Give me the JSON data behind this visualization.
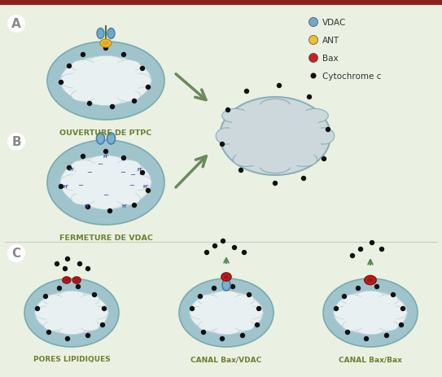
{
  "bg_color": "#eaf0e2",
  "border_color": "#8b2020",
  "mito_outer_fill": "#9fc4cc",
  "mito_outer_stroke": "#7aaab0",
  "cristae_fill": "#e8f0f2",
  "cristae_stroke": "#b8d0d4",
  "cloud_fill": "#ccd8dc",
  "cloud_stroke": "#8ab0b8",
  "vdac_color": "#7ab0d0",
  "ant_color": "#f0c030",
  "bax_color": "#c82020",
  "dot_color": "#111111",
  "arrow_color_big": "#6a8a5a",
  "arrow_color_small": "#5a8a50",
  "label_color": "#6a8030",
  "section_bg": "#ffffff",
  "section_text": "#aaaaaa",
  "title_A": "OUVERTURE DE PTPC",
  "title_B": "FERMETURE DE VDAC",
  "title_C1": "PORES LIPIDIQUES",
  "title_C2": "CANAL Bax/VDAC",
  "title_C3": "CANAL Bax/Bax",
  "fig_w": 5.43,
  "fig_h": 4.64,
  "dpi": 100
}
